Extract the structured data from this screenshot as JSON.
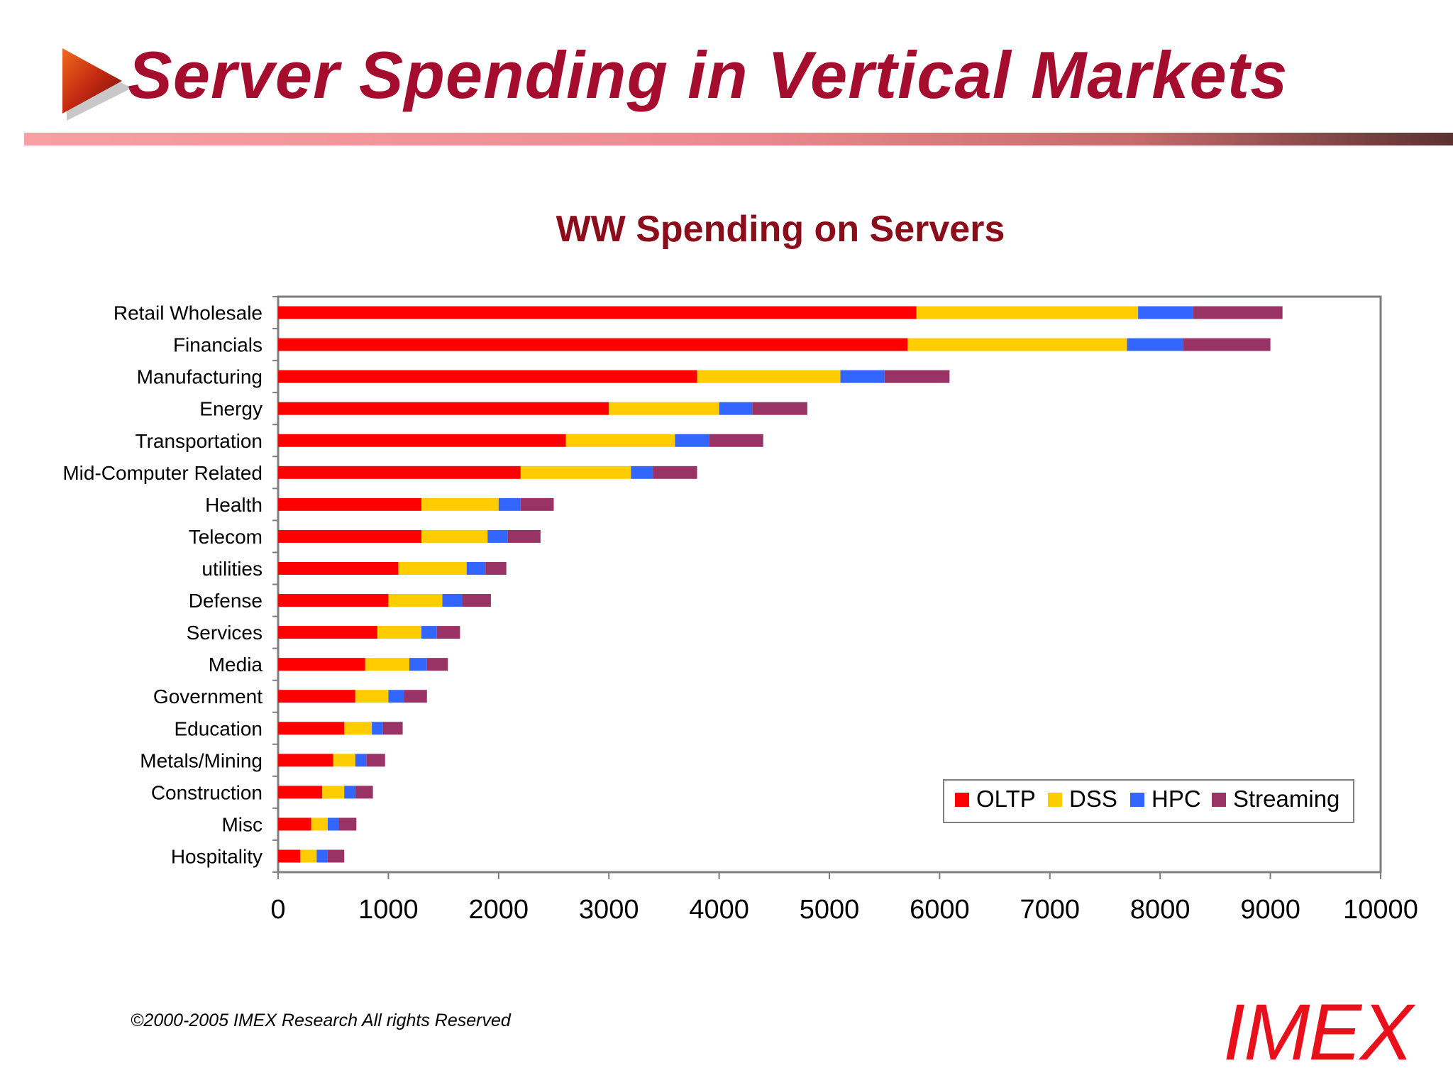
{
  "slide": {
    "title": "Server Spending in Vertical Markets",
    "copyright": "©2000-2005  IMEX Research All rights Reserved",
    "logo_text": "IMEX",
    "accent_color": "#a50d2f",
    "arrow_icon": "play-arrow-icon"
  },
  "chart_data": {
    "type": "bar",
    "orientation": "horizontal",
    "stacked": true,
    "title": "WW Spending on Servers",
    "xlabel": "",
    "ylabel": "",
    "xlim": [
      0,
      10000
    ],
    "x_ticks": [
      "0",
      "1000",
      "2000",
      "3000",
      "4000",
      "5000",
      "6000",
      "7000",
      "8000",
      "9000",
      "10000"
    ],
    "grid": false,
    "legend_position": "bottom-right",
    "categories": [
      "Retail Wholesale",
      "Financials",
      "Manufacturing",
      "Energy",
      "Transportation",
      "Mid-Computer Related",
      "Health",
      "Telecom",
      "utilities",
      "Defense",
      "Services",
      "Media",
      "Government",
      "Education",
      "Metals/Mining",
      "Construction",
      "Misc",
      "Hospitality"
    ],
    "series": [
      {
        "name": "OLTP",
        "color": "#ff0000",
        "values": [
          5790,
          5710,
          3800,
          3000,
          2610,
          2200,
          1300,
          1300,
          1090,
          1000,
          900,
          790,
          700,
          600,
          500,
          400,
          300,
          200
        ]
      },
      {
        "name": "DSS",
        "color": "#ffcc00",
        "values": [
          2010,
          1990,
          1300,
          1000,
          990,
          1000,
          700,
          600,
          620,
          490,
          400,
          400,
          300,
          250,
          200,
          200,
          150,
          150
        ]
      },
      {
        "name": "HPC",
        "color": "#3366ff",
        "values": [
          500,
          510,
          400,
          300,
          310,
          200,
          200,
          180,
          170,
          180,
          140,
          160,
          140,
          100,
          100,
          100,
          100,
          100
        ]
      },
      {
        "name": "Streaming",
        "color": "#993366",
        "values": [
          810,
          790,
          590,
          500,
          490,
          400,
          300,
          300,
          190,
          260,
          210,
          190,
          210,
          180,
          170,
          160,
          160,
          150
        ]
      }
    ]
  }
}
